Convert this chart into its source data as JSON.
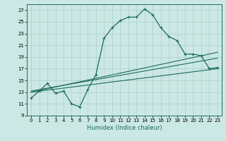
{
  "xlabel": "Humidex (Indice chaleur)",
  "xlim": [
    -0.5,
    23.5
  ],
  "ylim": [
    9,
    28
  ],
  "yticks": [
    9,
    11,
    13,
    15,
    17,
    19,
    21,
    23,
    25,
    27
  ],
  "xticks": [
    0,
    1,
    2,
    3,
    4,
    5,
    6,
    7,
    8,
    9,
    10,
    11,
    12,
    13,
    14,
    15,
    16,
    17,
    18,
    19,
    20,
    21,
    22,
    23
  ],
  "bg_color": "#cce8e4",
  "grid_color": "#aacfca",
  "line_color": "#1a6b60",
  "main_line": {
    "x": [
      0,
      1,
      2,
      3,
      4,
      5,
      6,
      7,
      8,
      9,
      10,
      11,
      12,
      13,
      14,
      15,
      16,
      17,
      18,
      19,
      20,
      21,
      22,
      23
    ],
    "y": [
      12.0,
      13.2,
      14.5,
      12.8,
      13.2,
      11.0,
      10.5,
      13.5,
      16.0,
      22.2,
      24.0,
      25.2,
      25.8,
      25.8,
      27.2,
      26.2,
      24.0,
      22.5,
      21.8,
      19.5,
      19.5,
      19.2,
      17.0,
      17.2
    ]
  },
  "trend_line1": {
    "x": [
      0,
      23
    ],
    "y": [
      13.0,
      19.8
    ]
  },
  "trend_line2": {
    "x": [
      0,
      23
    ],
    "y": [
      13.0,
      17.0
    ]
  },
  "trend_line3": {
    "x": [
      0,
      23
    ],
    "y": [
      13.2,
      18.8
    ]
  }
}
